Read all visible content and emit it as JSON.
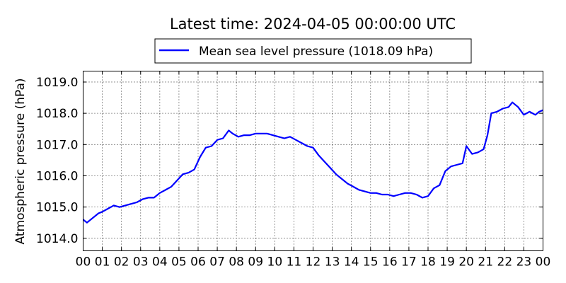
{
  "chart_data": {
    "type": "line",
    "title": "Latest time: 2024-04-05 00:00:00 UTC",
    "xlabel": "",
    "ylabel": "Atmospheric pressure (hPa)",
    "xlim": [
      0,
      24
    ],
    "ylim": [
      1013.6,
      1019.35
    ],
    "x_tick_values": [
      0,
      1,
      2,
      3,
      4,
      5,
      6,
      7,
      8,
      9,
      10,
      11,
      12,
      13,
      14,
      15,
      16,
      17,
      18,
      19,
      20,
      21,
      22,
      23,
      24
    ],
    "x_tick_labels": [
      "00",
      "01",
      "02",
      "03",
      "04",
      "05",
      "06",
      "07",
      "08",
      "09",
      "10",
      "11",
      "12",
      "13",
      "14",
      "15",
      "16",
      "17",
      "18",
      "19",
      "20",
      "21",
      "22",
      "23",
      "00"
    ],
    "y_tick_values": [
      1014.0,
      1015.0,
      1016.0,
      1017.0,
      1018.0,
      1019.0
    ],
    "y_tick_labels": [
      "1014.0",
      "1015.0",
      "1016.0",
      "1017.0",
      "1018.0",
      "1019.0"
    ],
    "grid": true,
    "legend_position": "top-center",
    "series": [
      {
        "name": "Mean sea level pressure (1018.09 hPa)",
        "color": "#0000ff",
        "x": [
          0.0,
          0.2,
          0.4,
          0.6,
          0.8,
          1.0,
          1.3,
          1.6,
          1.9,
          2.2,
          2.5,
          2.8,
          3.1,
          3.4,
          3.7,
          4.0,
          4.3,
          4.6,
          4.9,
          5.2,
          5.5,
          5.8,
          6.1,
          6.4,
          6.7,
          7.0,
          7.3,
          7.6,
          7.8,
          8.1,
          8.4,
          8.7,
          9.0,
          9.3,
          9.6,
          9.9,
          10.2,
          10.5,
          10.8,
          11.1,
          11.4,
          11.7,
          12.0,
          12.3,
          12.6,
          12.9,
          13.2,
          13.5,
          13.8,
          14.1,
          14.4,
          14.7,
          15.0,
          15.3,
          15.6,
          15.9,
          16.2,
          16.5,
          16.8,
          17.1,
          17.4,
          17.7,
          18.0,
          18.3,
          18.6,
          18.9,
          19.2,
          19.5,
          19.8,
          20.0,
          20.3,
          20.6,
          20.9,
          21.1,
          21.3,
          21.6,
          21.9,
          22.2,
          22.4,
          22.7,
          23.0,
          23.3,
          23.6,
          23.8,
          24.0
        ],
        "y": [
          1014.6,
          1014.5,
          1014.6,
          1014.7,
          1014.8,
          1014.85,
          1014.95,
          1015.05,
          1015.0,
          1015.05,
          1015.1,
          1015.15,
          1015.25,
          1015.3,
          1015.3,
          1015.45,
          1015.55,
          1015.65,
          1015.85,
          1016.05,
          1016.1,
          1016.2,
          1016.6,
          1016.9,
          1016.95,
          1017.15,
          1017.2,
          1017.45,
          1017.35,
          1017.25,
          1017.3,
          1017.3,
          1017.35,
          1017.35,
          1017.35,
          1017.3,
          1017.25,
          1017.2,
          1017.25,
          1017.15,
          1017.05,
          1016.95,
          1016.9,
          1016.65,
          1016.45,
          1016.25,
          1016.05,
          1015.9,
          1015.75,
          1015.65,
          1015.55,
          1015.5,
          1015.45,
          1015.45,
          1015.4,
          1015.4,
          1015.35,
          1015.4,
          1015.45,
          1015.45,
          1015.4,
          1015.3,
          1015.35,
          1015.6,
          1015.7,
          1016.15,
          1016.3,
          1016.35,
          1016.4,
          1016.95,
          1016.7,
          1016.75,
          1016.85,
          1017.3,
          1018.0,
          1018.05,
          1018.15,
          1018.2,
          1018.35,
          1018.2,
          1017.95,
          1018.05,
          1017.95,
          1018.05,
          1018.1
        ]
      }
    ]
  }
}
